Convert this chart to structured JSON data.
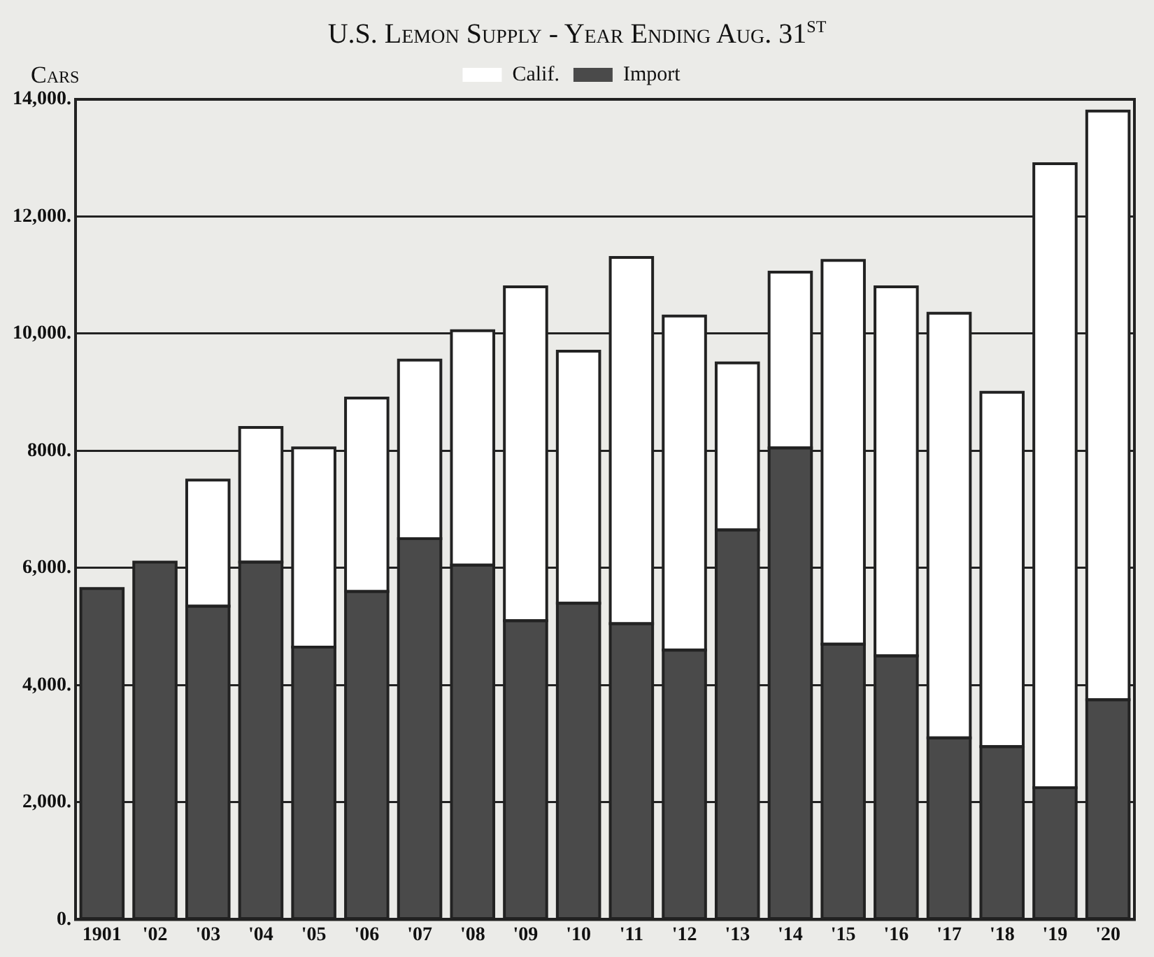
{
  "chart_data": {
    "type": "bar",
    "title": "U.S. Lemon Supply - Year Ending Aug. 31$^{st}$",
    "ylabel": "Cars",
    "categories": [
      "1901",
      "'02",
      "'03",
      "'04",
      "'05",
      "'06",
      "'07",
      "'08",
      "'09",
      "'10",
      "'11",
      "'12",
      "'13",
      "'14",
      "'15",
      "'16",
      "'17",
      "'18",
      "'19",
      "'20"
    ],
    "series": [
      {
        "name": "Import",
        "color": "#4a4a4a",
        "values": [
          5650,
          6100,
          5350,
          6100,
          4650,
          5600,
          6500,
          6050,
          5100,
          5400,
          5050,
          4600,
          6650,
          8050,
          4700,
          4500,
          3100,
          2950,
          2250,
          3750
        ]
      },
      {
        "name": "Calif.",
        "color": "#ffffff",
        "values": [
          null,
          null,
          2150,
          2300,
          3400,
          3300,
          3050,
          4000,
          5700,
          4300,
          6250,
          5700,
          2850,
          3000,
          6550,
          6300,
          7250,
          6050,
          10650,
          10050
        ]
      }
    ],
    "stacked": true,
    "ylim": [
      0,
      14000
    ],
    "yticks": [
      {
        "value": 0,
        "label": "0."
      },
      {
        "value": 2000,
        "label": "2,000."
      },
      {
        "value": 4000,
        "label": "4,000."
      },
      {
        "value": 6000,
        "label": "6,000."
      },
      {
        "value": 8000,
        "label": "8000."
      },
      {
        "value": 10000,
        "label": "10,000."
      },
      {
        "value": 12000,
        "label": "12,000."
      },
      {
        "value": 14000,
        "label": "14,000."
      }
    ],
    "grid": "y",
    "legend": "top"
  }
}
